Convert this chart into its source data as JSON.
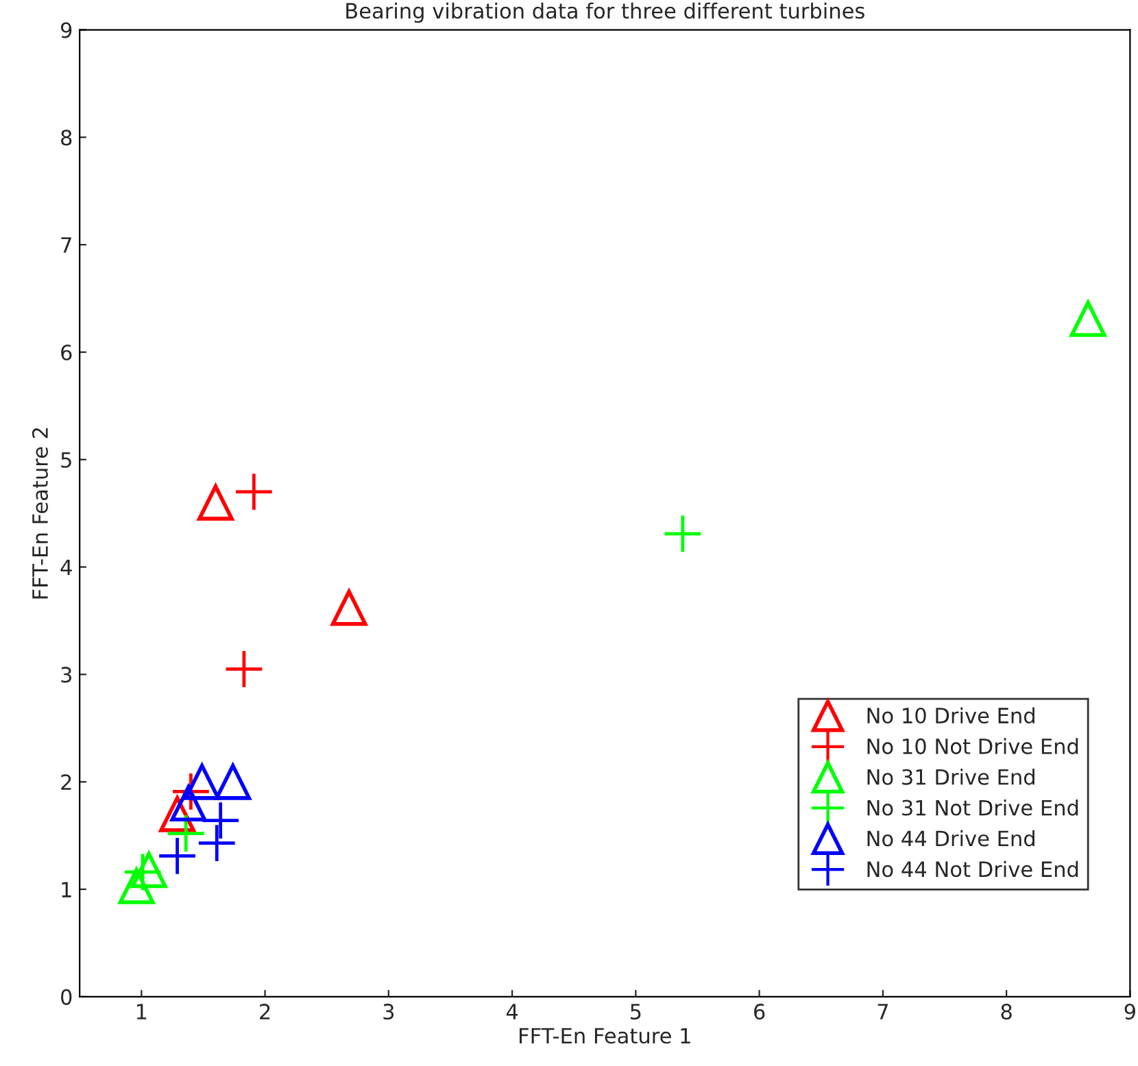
{
  "chart_data": {
    "type": "scatter",
    "title": "Bearing vibration data for three different turbines",
    "xlabel": "FFT-En Feature 1",
    "ylabel": "FFT-En Feature 2",
    "xlim": [
      0.5,
      9
    ],
    "ylim": [
      0,
      9
    ],
    "xticks": [
      1,
      2,
      3,
      4,
      5,
      6,
      7,
      8,
      9
    ],
    "yticks": [
      0,
      1,
      2,
      3,
      4,
      5,
      6,
      7,
      8,
      9
    ],
    "grid": false,
    "legend": "bottom right",
    "series": [
      {
        "name": "No 10 Drive End",
        "color": "#ff0000",
        "marker": "triangle",
        "x": [
          1.29,
          1.6,
          2.68
        ],
        "values": [
          1.7,
          4.6,
          3.62
        ]
      },
      {
        "name": "No 10 Not Drive End",
        "color": "#ff0000",
        "marker": "cross",
        "x": [
          1.91,
          1.83,
          1.4
        ],
        "values": [
          4.7,
          3.05,
          1.91
        ]
      },
      {
        "name": "No 31 Drive End",
        "color": "#00ff00",
        "marker": "triangle",
        "x": [
          8.66,
          0.96,
          1.06
        ],
        "values": [
          6.31,
          1.03,
          1.18
        ]
      },
      {
        "name": "No 31 Not Drive End",
        "color": "#00ff00",
        "marker": "cross",
        "x": [
          5.38,
          1.36,
          1.01
        ],
        "values": [
          4.31,
          1.52,
          1.16
        ]
      },
      {
        "name": "No 44 Drive End",
        "color": "#0000ff",
        "marker": "triangle",
        "x": [
          1.49,
          1.74,
          1.38
        ],
        "values": [
          2.0,
          2.0,
          1.8
        ]
      },
      {
        "name": "No 44 Not Drive End",
        "color": "#0000ff",
        "marker": "cross",
        "x": [
          1.29,
          1.61,
          1.64
        ],
        "values": [
          1.31,
          1.43,
          1.64
        ]
      }
    ]
  }
}
